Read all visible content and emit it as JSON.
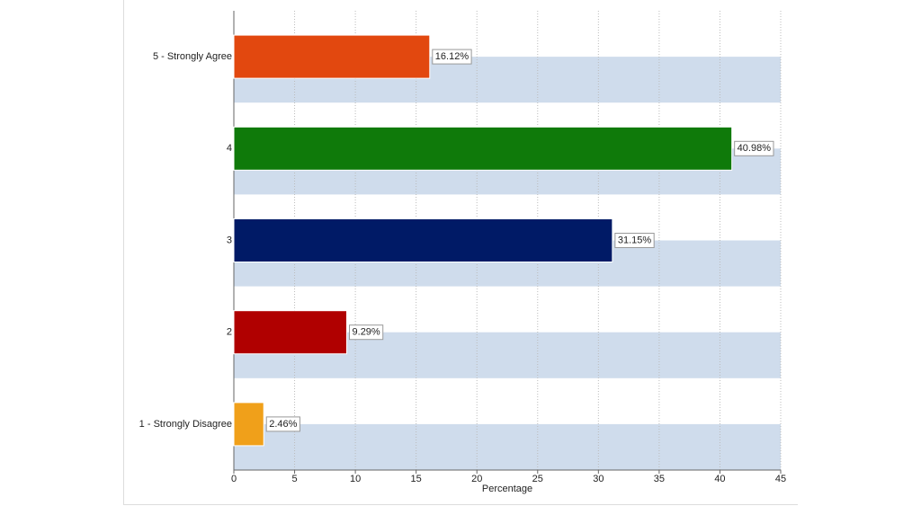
{
  "chart_data": {
    "type": "bar",
    "orientation": "horizontal",
    "categories": [
      "5 - Strongly Agree",
      "4",
      "3",
      "2",
      "1 - Strongly Disagree"
    ],
    "values": [
      16.12,
      40.98,
      31.15,
      9.29,
      2.46
    ],
    "value_labels": [
      "16.12%",
      "40.98%",
      "31.15%",
      "9.29%",
      "2.46%"
    ],
    "colors": [
      "#e2480f",
      "#0f7a0a",
      "#001a66",
      "#b00000",
      "#f0a01a"
    ],
    "xlabel": "Percentage",
    "xlim": [
      0,
      45
    ],
    "xticks": [
      0,
      5,
      10,
      15,
      20,
      25,
      30,
      35,
      40,
      45
    ],
    "grid": true
  }
}
